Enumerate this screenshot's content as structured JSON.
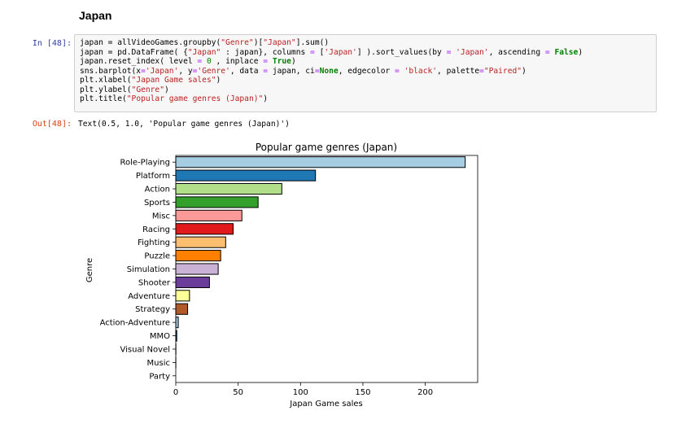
{
  "notebook": {
    "section_heading": "Japan",
    "input_prompt": "In [48]:",
    "output_prompt": "Out[48]:",
    "code_lines": [
      [
        [
          "japan = allVideoGames.groupby(",
          ""
        ],
        [
          "\"Genre\"",
          "s"
        ],
        [
          ")[",
          ""
        ],
        [
          "\"Japan\"",
          "s"
        ],
        [
          "].sum()",
          ""
        ]
      ],
      [
        [
          "japan = pd.DataFrame( {",
          ""
        ],
        [
          "\"Japan\"",
          "s"
        ],
        [
          " : japan}, columns ",
          ""
        ],
        [
          "=",
          "o"
        ],
        [
          " [",
          ""
        ],
        [
          "'Japan'",
          "s"
        ],
        [
          "] ).sort_values(by ",
          ""
        ],
        [
          "=",
          "o"
        ],
        [
          " ",
          ""
        ],
        [
          "'Japan'",
          "s"
        ],
        [
          ", ascending ",
          ""
        ],
        [
          "=",
          "o"
        ],
        [
          " ",
          ""
        ],
        [
          "False",
          "k"
        ],
        [
          ")",
          ""
        ]
      ],
      [
        [
          "japan.reset_index( level ",
          ""
        ],
        [
          "=",
          "o"
        ],
        [
          " ",
          ""
        ],
        [
          "0",
          "n"
        ],
        [
          " , inplace ",
          ""
        ],
        [
          "=",
          "o"
        ],
        [
          " ",
          ""
        ],
        [
          "True",
          "k"
        ],
        [
          ")",
          ""
        ]
      ],
      [
        [
          "sns.barplot(x",
          ""
        ],
        [
          "=",
          "o"
        ],
        [
          "'Japan'",
          "s"
        ],
        [
          ", y",
          ""
        ],
        [
          "=",
          "o"
        ],
        [
          "'Genre'",
          "s"
        ],
        [
          ", data ",
          ""
        ],
        [
          "=",
          "o"
        ],
        [
          " japan, ci",
          ""
        ],
        [
          "=",
          "o"
        ],
        [
          "None",
          "k"
        ],
        [
          ", edgecolor ",
          ""
        ],
        [
          "=",
          "o"
        ],
        [
          " ",
          ""
        ],
        [
          "'black'",
          "s"
        ],
        [
          ", palette",
          ""
        ],
        [
          "=",
          "o"
        ],
        [
          "\"Paired\"",
          "s"
        ],
        [
          ")",
          ""
        ]
      ],
      [
        [
          "plt.xlabel(",
          ""
        ],
        [
          "\"Japan Game sales\"",
          "s"
        ],
        [
          ")",
          ""
        ]
      ],
      [
        [
          "plt.ylabel(",
          ""
        ],
        [
          "\"Genre\"",
          "s"
        ],
        [
          ")",
          ""
        ]
      ],
      [
        [
          "plt.title(",
          ""
        ],
        [
          "\"Popular game genres (Japan)\"",
          "s"
        ],
        [
          ")",
          ""
        ]
      ]
    ],
    "output_text": "Text(0.5, 1.0, 'Popular game genres (Japan)')"
  },
  "chart_data": {
    "type": "bar",
    "orientation": "horizontal",
    "title": "Popular game genres (Japan)",
    "xlabel": "Japan Game sales",
    "ylabel": "Genre",
    "categories": [
      "Role-Playing",
      "Platform",
      "Action",
      "Sports",
      "Misc",
      "Racing",
      "Fighting",
      "Puzzle",
      "Simulation",
      "Shooter",
      "Adventure",
      "Strategy",
      "Action-Adventure",
      "MMO",
      "Visual Novel",
      "Music",
      "Party"
    ],
    "values": [
      232,
      112,
      85,
      66,
      53,
      46,
      40,
      36,
      34,
      27,
      11,
      9.5,
      2,
      0.8,
      0.1,
      0.05,
      0
    ],
    "colors": [
      "#a6cee3",
      "#1f78b4",
      "#b2df8a",
      "#33a02c",
      "#fb9a99",
      "#e31a1c",
      "#fdbf6f",
      "#ff7f00",
      "#cab2d6",
      "#6a3d9a",
      "#ffff99",
      "#b15928",
      "#a6cee3",
      "#1f78b4",
      "#b2df8a",
      "#33a02c",
      "#fb9a99"
    ],
    "xlim": [
      0,
      242
    ],
    "xticks": [
      0,
      50,
      100,
      150,
      200
    ],
    "grid": false,
    "edgecolor": "#000000"
  }
}
